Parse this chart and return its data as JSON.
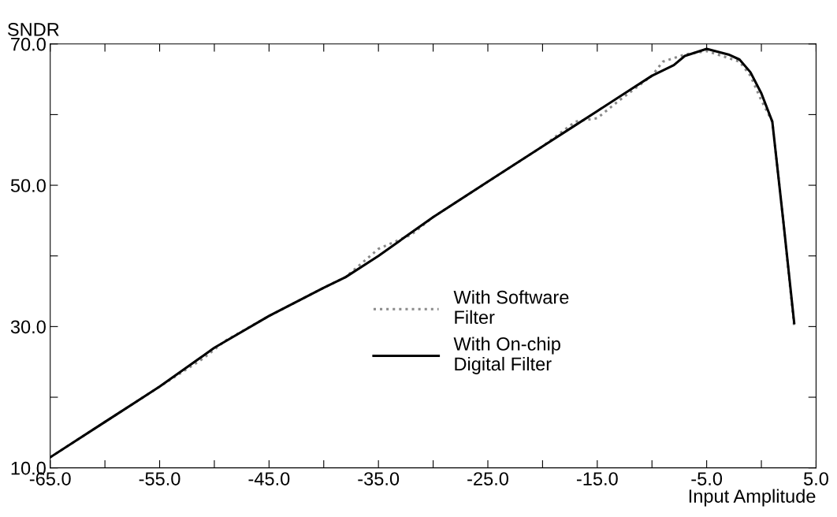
{
  "chart_data": {
    "type": "line",
    "xlabel": "Input Amplitude",
    "ylabel": "SNDR",
    "xlim": [
      -65,
      5
    ],
    "ylim": [
      10,
      70
    ],
    "xticks": [
      {
        "value": -65,
        "label": "-65.0"
      },
      {
        "value": -60,
        "label": null
      },
      {
        "value": -55,
        "label": "-55.0"
      },
      {
        "value": -50,
        "label": null
      },
      {
        "value": -45,
        "label": "-45.0"
      },
      {
        "value": -40,
        "label": null
      },
      {
        "value": -35,
        "label": "-35.0"
      },
      {
        "value": -30,
        "label": null
      },
      {
        "value": -25,
        "label": "-25.0"
      },
      {
        "value": -20,
        "label": null
      },
      {
        "value": -15,
        "label": "-15.0"
      },
      {
        "value": -10,
        "label": null
      },
      {
        "value": -5,
        "label": "-5.0"
      },
      {
        "value": 0,
        "label": null
      },
      {
        "value": 5,
        "label": "5.0"
      }
    ],
    "yticks": [
      {
        "value": 10,
        "label": "10.0"
      },
      {
        "value": 20,
        "label": null
      },
      {
        "value": 30,
        "label": "30.0"
      },
      {
        "value": 40,
        "label": null
      },
      {
        "value": 50,
        "label": "50.0"
      },
      {
        "value": 60,
        "label": null
      },
      {
        "value": 70,
        "label": "70.0"
      }
    ],
    "grid": false,
    "legend": "center",
    "marker": "none",
    "series": [
      {
        "name": "With Software\nFilter",
        "color": "#8a8a8a",
        "line_style": "dotted",
        "x": [
          -65,
          -60,
          -55,
          -51,
          -49,
          -45,
          -40,
          -38,
          -35,
          -32,
          -30,
          -28,
          -25,
          -20,
          -17,
          -15,
          -13,
          -10,
          -9,
          -7,
          -5,
          -3,
          -2,
          -1,
          0,
          1,
          2,
          3
        ],
        "values": [
          11.5,
          16.5,
          21.5,
          25.5,
          28,
          31.5,
          35.5,
          37,
          41,
          43,
          45.5,
          47.5,
          50.5,
          55.5,
          59,
          59.5,
          62,
          65.5,
          67.5,
          68.5,
          69,
          68,
          67.5,
          65.5,
          62,
          59,
          45,
          30
        ]
      },
      {
        "name": "With On-chip\nDigital Filter",
        "color": "#000000",
        "line_style": "solid",
        "x": [
          -65,
          -60,
          -55,
          -50,
          -45,
          -40,
          -38,
          -35,
          -30,
          -25,
          -20,
          -17,
          -15,
          -12,
          -10,
          -8,
          -7,
          -5,
          -3,
          -2,
          -1,
          0,
          1,
          2,
          3
        ],
        "values": [
          11.5,
          16.5,
          21.5,
          27,
          31.5,
          35.5,
          37,
          40,
          45.5,
          50.5,
          55.5,
          58.5,
          60.5,
          63.5,
          65.5,
          67,
          68.3,
          69.3,
          68.5,
          67.8,
          66,
          63,
          59,
          45,
          30.5
        ]
      }
    ]
  }
}
